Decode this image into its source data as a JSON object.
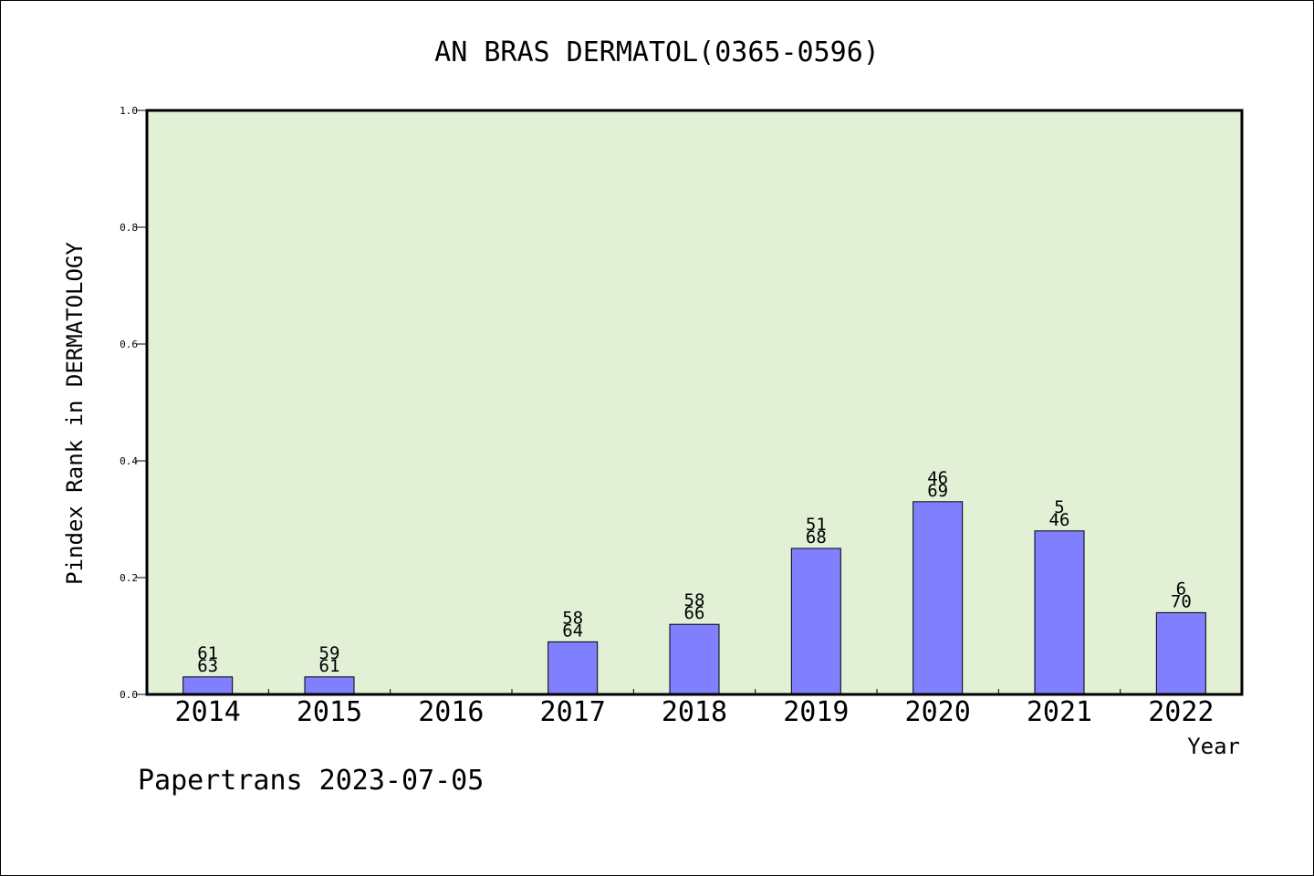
{
  "chart_data": {
    "type": "bar",
    "title": "AN BRAS DERMATOL(0365-0596)",
    "xlabel": "Year",
    "ylabel": "Pindex Rank in DERMATOLOGY",
    "ylim": [
      0,
      1.0
    ],
    "yticks": [
      "0.0",
      "0.2",
      "0.4",
      "0.6",
      "0.8",
      "1.0"
    ],
    "categories": [
      "2014",
      "2015",
      "2016",
      "2017",
      "2018",
      "2019",
      "2020",
      "2021",
      "2022"
    ],
    "values": [
      0.03,
      0.03,
      null,
      0.09,
      0.12,
      0.25,
      0.33,
      0.28,
      0.14
    ],
    "rank_labels": [
      {
        "rank": "61",
        "total": "63"
      },
      {
        "rank": "59",
        "total": "61"
      },
      null,
      {
        "rank": "58",
        "total": "64"
      },
      {
        "rank": "58",
        "total": "66"
      },
      {
        "rank": "51",
        "total": "68"
      },
      {
        "rank": "46",
        "total": "69"
      },
      {
        "rank": "5",
        "total": "46"
      },
      {
        "rank": "6",
        "total": "70"
      }
    ],
    "grid": false,
    "colors": {
      "plot_background": "#e2f0d6",
      "bar_fill": "#8080ff",
      "bar_stroke": "#000000"
    }
  },
  "footer": "Papertrans 2023-07-05"
}
